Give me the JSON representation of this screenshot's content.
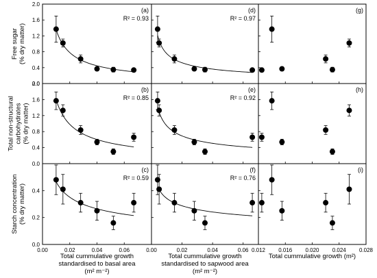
{
  "ylabels": [
    [
      "Free sugar",
      "(% dry matter)"
    ],
    [
      "Total non-structural",
      "carbohydrates",
      "(% dry matter)"
    ],
    [
      "Starch concentration",
      "(% dry matter)"
    ]
  ],
  "xlabels": [
    [
      "Total cummulative growth",
      "standardised to basal area",
      "(m² m⁻²)"
    ],
    [
      "Total cummulative growth",
      "standardised to sapwood area",
      "(m² m⁻²)"
    ],
    [
      "Total cummulative growth (m²)"
    ]
  ],
  "chart_data": [
    {
      "panel": "a",
      "type": "scatter",
      "r2": "R² = 0.93",
      "x": [
        0.01,
        0.015,
        0.028,
        0.04,
        0.052,
        0.067
      ],
      "y": [
        1.37,
        1.02,
        0.62,
        0.37,
        0.35,
        0.34
      ],
      "err": [
        0.33,
        0.1,
        0.1,
        0.05,
        0.06,
        0.04
      ],
      "fit": "power",
      "xlim": [
        0,
        0.08
      ],
      "ylim": [
        0,
        2.0
      ],
      "xticks": [
        "0.00",
        "0.02",
        "0.04",
        "0.06"
      ],
      "yticks": [
        "0.0",
        "0.4",
        "0.8",
        "1.2",
        "1.6",
        "2.0"
      ]
    },
    {
      "panel": "d",
      "type": "scatter",
      "r2": "R² = 0.97",
      "x": [
        0.004,
        0.005,
        0.015,
        0.028,
        0.035,
        0.066
      ],
      "y": [
        1.37,
        1.02,
        0.62,
        0.37,
        0.35,
        0.34
      ],
      "err": [
        0.33,
        0.1,
        0.1,
        0.05,
        0.06,
        0.04
      ],
      "fit": "power",
      "xlim": [
        0,
        0.07
      ],
      "ylim": [
        0,
        2.0
      ],
      "xticks": [
        "0.00",
        "0.02",
        "0.04",
        "0.06"
      ],
      "yticks": []
    },
    {
      "panel": "g",
      "type": "scatter",
      "r2": "",
      "x": [
        0.0125,
        0.014,
        0.0155,
        0.022,
        0.023,
        0.0255
      ],
      "y": [
        0.34,
        1.37,
        0.37,
        0.62,
        0.35,
        1.02
      ],
      "err": [
        0.04,
        0.33,
        0.05,
        0.1,
        0.06,
        0.1
      ],
      "fit": "none",
      "xlim": [
        0.012,
        0.028
      ],
      "ylim": [
        0,
        2.0
      ],
      "xticks": [
        "0.012",
        "0.016",
        "0.020",
        "0.024",
        "0.028"
      ],
      "yticks": []
    },
    {
      "panel": "b",
      "type": "scatter",
      "r2": "R² = 0.85",
      "x": [
        0.01,
        0.015,
        0.028,
        0.04,
        0.052,
        0.067
      ],
      "y": [
        1.57,
        1.33,
        0.84,
        0.54,
        0.3,
        0.66
      ],
      "err": [
        0.22,
        0.14,
        0.11,
        0.07,
        0.07,
        0.1
      ],
      "fit": "power",
      "xlim": [
        0,
        0.08
      ],
      "ylim": [
        0,
        2.0
      ],
      "xticks": [
        "0.00",
        "0.02",
        "0.04",
        "0.06"
      ],
      "yticks": [
        "0.0",
        "0.4",
        "0.8",
        "1.2",
        "1.6",
        "2.0"
      ]
    },
    {
      "panel": "e",
      "type": "scatter",
      "r2": "R² = 0.92",
      "x": [
        0.004,
        0.005,
        0.015,
        0.028,
        0.035,
        0.066
      ],
      "y": [
        1.57,
        1.33,
        0.84,
        0.54,
        0.3,
        0.66
      ],
      "err": [
        0.22,
        0.14,
        0.11,
        0.07,
        0.07,
        0.1
      ],
      "fit": "power",
      "xlim": [
        0,
        0.07
      ],
      "ylim": [
        0,
        2.0
      ],
      "xticks": [
        "0.00",
        "0.02",
        "0.04",
        "0.06"
      ],
      "yticks": []
    },
    {
      "panel": "h",
      "type": "scatter",
      "r2": "",
      "x": [
        0.0125,
        0.014,
        0.0155,
        0.022,
        0.023,
        0.0255
      ],
      "y": [
        0.66,
        1.57,
        0.54,
        0.84,
        0.3,
        1.33
      ],
      "err": [
        0.1,
        0.22,
        0.07,
        0.11,
        0.07,
        0.14
      ],
      "fit": "none",
      "xlim": [
        0.012,
        0.028
      ],
      "ylim": [
        0,
        2.0
      ],
      "xticks": [
        "0.012",
        "0.016",
        "0.020",
        "0.024",
        "0.028"
      ],
      "yticks": []
    },
    {
      "panel": "c",
      "type": "scatter",
      "r2": "R² = 0.59",
      "x": [
        0.01,
        0.015,
        0.028,
        0.04,
        0.052,
        0.067
      ],
      "y": [
        0.48,
        0.41,
        0.31,
        0.25,
        0.16,
        0.31
      ],
      "err": [
        0.11,
        0.11,
        0.07,
        0.07,
        0.05,
        0.07
      ],
      "fit": "power",
      "xlim": [
        0,
        0.08
      ],
      "ylim": [
        0,
        0.6
      ],
      "xticks": [
        "0.00",
        "0.02",
        "0.04",
        "0.06"
      ],
      "yticks": [
        "0.0",
        "0.2",
        "0.4"
      ]
    },
    {
      "panel": "f",
      "type": "scatter",
      "r2": "R² = 0.76",
      "x": [
        0.004,
        0.005,
        0.015,
        0.028,
        0.035,
        0.066
      ],
      "y": [
        0.48,
        0.41,
        0.31,
        0.25,
        0.16,
        0.31
      ],
      "err": [
        0.11,
        0.11,
        0.07,
        0.07,
        0.05,
        0.07
      ],
      "fit": "power",
      "xlim": [
        0,
        0.07
      ],
      "ylim": [
        0,
        0.6
      ],
      "xticks": [
        "0.00",
        "0.02",
        "0.04",
        "0.06"
      ],
      "yticks": []
    },
    {
      "panel": "i",
      "type": "scatter",
      "r2": "",
      "x": [
        0.0125,
        0.014,
        0.0155,
        0.022,
        0.023,
        0.0255
      ],
      "y": [
        0.31,
        0.48,
        0.25,
        0.31,
        0.16,
        0.41
      ],
      "err": [
        0.07,
        0.11,
        0.07,
        0.07,
        0.05,
        0.11
      ],
      "fit": "none",
      "xlim": [
        0.012,
        0.028
      ],
      "ylim": [
        0,
        0.6
      ],
      "xticks": [
        "0.012",
        "0.016",
        "0.020",
        "0.024",
        "0.028"
      ],
      "yticks": []
    }
  ]
}
